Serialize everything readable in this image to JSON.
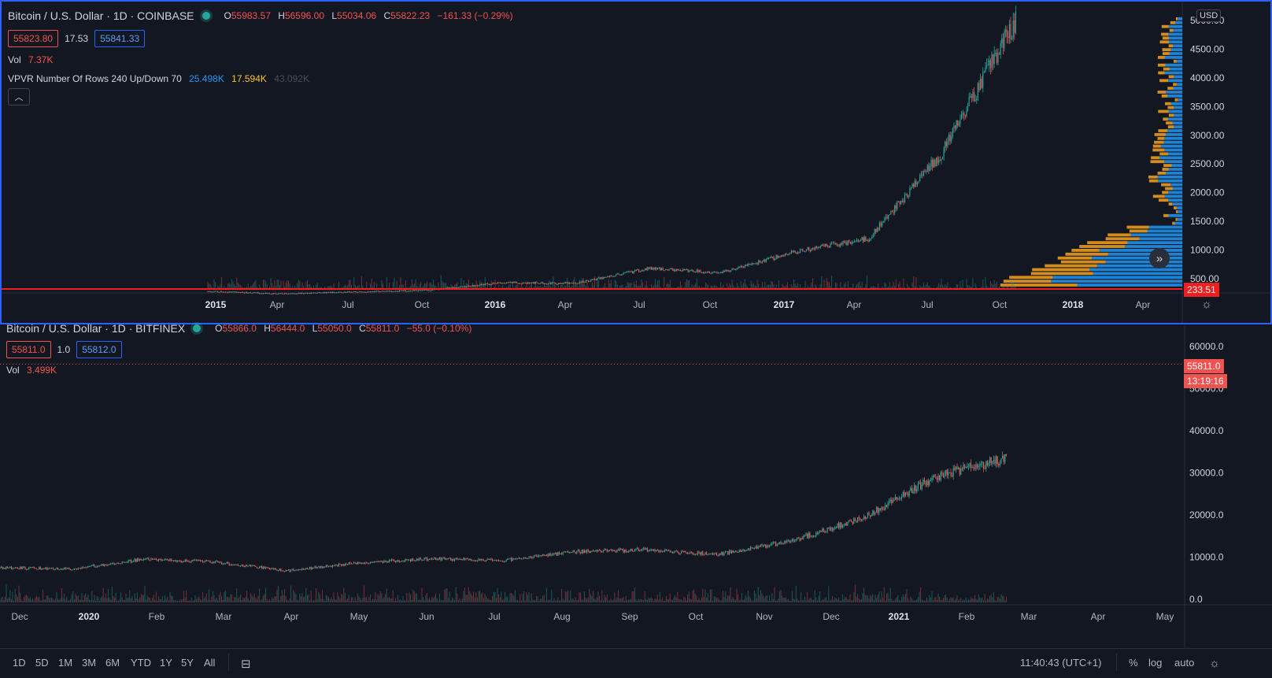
{
  "pane1": {
    "title": "Bitcoin / U.S. Dollar · 1D · COINBASE",
    "ohlc": {
      "o": "55983.57",
      "h": "56596.00",
      "l": "55034.06",
      "c": "55822.23",
      "chg": "−161.33 (−0.29%)"
    },
    "bid": "55823.80",
    "spread": "17.53",
    "ask": "55841.33",
    "vol_label": "Vol",
    "vol_value": "7.37K",
    "vpvr_label": "VPVR Number Of Rows 240 Up/Down 70",
    "vpvr_up": "25.498K",
    "vpvr_down": "17.594K",
    "vpvr_total": "43.092K",
    "collapse_icon": "chevron-up-icon",
    "currency": "USD",
    "price_axis": [
      "5000.00",
      "4500.00",
      "4000.00",
      "3500.00",
      "3000.00",
      "2500.00",
      "2000.00",
      "1500.00",
      "1000.00",
      "500.00"
    ],
    "last_tag": "233.51",
    "time_axis": [
      "2015",
      "Apr",
      "Jul",
      "Oct",
      "2016",
      "Apr",
      "Jul",
      "Oct",
      "2017",
      "Apr",
      "Jul",
      "Oct",
      "2018",
      "Apr"
    ],
    "colors": {
      "up": "#26a69a",
      "down": "#ef5350",
      "vpvr_up": "#2196f3",
      "vpvr_down": "#f7a21b",
      "border": "#2962ff"
    },
    "chart_data": {
      "type": "candlestick",
      "title": "Bitcoin / U.S. Dollar · 1D · COINBASE",
      "x": [
        "2015",
        "Apr",
        "Jul",
        "Oct",
        "2016",
        "Apr",
        "Jul",
        "Oct",
        "2017",
        "Apr",
        "Jul",
        "Oct"
      ],
      "close": [
        280,
        240,
        270,
        300,
        430,
        420,
        680,
        610,
        970,
        1200,
        2700,
        5000
      ],
      "ylim": [
        0,
        5200
      ],
      "scale": "linear"
    }
  },
  "pane2": {
    "title": "Bitcoin / U.S. Dollar · 1D · BITFINEX",
    "ohlc": {
      "o": "55866.0",
      "h": "56444.0",
      "l": "55050.0",
      "c": "55811.0",
      "chg": "−55.0 (−0.10%)"
    },
    "bid": "55811.0",
    "spread": "1.0",
    "ask": "55812.0",
    "vol_label": "Vol",
    "vol_value": "3.499K",
    "price_axis": [
      "60000.0",
      "50000.0",
      "40000.0",
      "30000.0",
      "20000.0",
      "10000.0",
      "0.0"
    ],
    "last_price_tag": "55811.0",
    "countdown_tag": "13:19:16",
    "time_axis": [
      "Dec",
      "2020",
      "Feb",
      "Mar",
      "Apr",
      "May",
      "Jun",
      "Jul",
      "Aug",
      "Sep",
      "Oct",
      "Nov",
      "Dec",
      "2021",
      "Feb",
      "Mar",
      "Apr",
      "May"
    ],
    "chart_data": {
      "type": "candlestick",
      "title": "Bitcoin / U.S. Dollar · 1D · BITFINEX",
      "x": [
        "Dec",
        "2020",
        "Feb",
        "Mar",
        "Apr",
        "May",
        "Jun",
        "Jul",
        "Aug",
        "Sep",
        "Oct",
        "Nov",
        "Dec",
        "2021",
        "Feb"
      ],
      "close": [
        7500,
        7200,
        9500,
        8800,
        6800,
        8700,
        9600,
        9200,
        11300,
        11700,
        10700,
        13800,
        19200,
        29000,
        33500
      ],
      "ylim": [
        0,
        65000
      ],
      "scale": "linear"
    }
  },
  "toolbar": {
    "timeframes": [
      "1D",
      "5D",
      "1M",
      "3M",
      "6M",
      "YTD",
      "1Y",
      "5Y",
      "All"
    ],
    "calendar_icon": "calendar-range-icon",
    "clock": "11:40:43 (UTC+1)",
    "percent": "%",
    "log": "log",
    "auto": "auto"
  },
  "settings_icon": "gear-icon",
  "scroll_icon": "double-chevron-right-icon"
}
